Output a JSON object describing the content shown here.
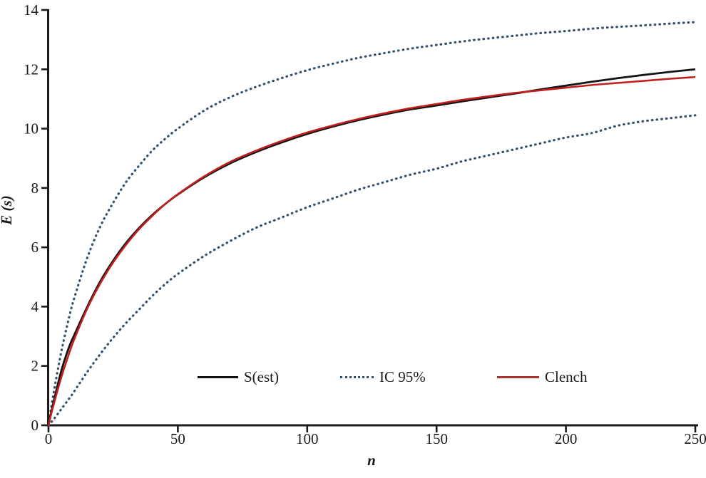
{
  "figure": {
    "background": "#ffffff",
    "axis_color": "#1a1a1a",
    "tick_color": "#1a1a1a"
  },
  "chart_data": {
    "type": "line",
    "title": "",
    "xlabel": "n",
    "ylabel": "E (s)",
    "xlim": [
      0,
      250
    ],
    "ylim": [
      0,
      14
    ],
    "x_ticks": [
      0,
      50,
      100,
      150,
      200,
      250
    ],
    "y_ticks": [
      0,
      2,
      4,
      6,
      8,
      10,
      12,
      14
    ],
    "grid": false,
    "legend_position": "inside-bottom-center",
    "x_shared": [
      0,
      2,
      5,
      8,
      10,
      15,
      20,
      25,
      30,
      35,
      40,
      45,
      50,
      60,
      70,
      80,
      90,
      100,
      110,
      120,
      130,
      140,
      150,
      160,
      170,
      180,
      190,
      200,
      210,
      220,
      230,
      240,
      250
    ],
    "series": [
      {
        "name": "S(est)",
        "style": "solid",
        "color": "#141414",
        "width": 2.8,
        "y": [
          0,
          0.8,
          1.85,
          2.65,
          3.05,
          4.0,
          4.85,
          5.55,
          6.15,
          6.65,
          7.08,
          7.45,
          7.78,
          8.35,
          8.82,
          9.2,
          9.53,
          9.82,
          10.07,
          10.29,
          10.48,
          10.65,
          10.78,
          10.92,
          11.05,
          11.18,
          11.32,
          11.45,
          11.58,
          11.7,
          11.81,
          11.91,
          12.0
        ]
      },
      {
        "name": "IC 95%",
        "style": "dotted",
        "color": "#35506e",
        "width": 3.2,
        "upper_y": [
          0,
          1.1,
          2.5,
          3.65,
          4.3,
          5.65,
          6.7,
          7.5,
          8.2,
          8.75,
          9.25,
          9.65,
          10.0,
          10.6,
          11.05,
          11.4,
          11.7,
          11.97,
          12.19,
          12.39,
          12.55,
          12.7,
          12.82,
          12.94,
          13.04,
          13.13,
          13.22,
          13.29,
          13.37,
          13.43,
          13.48,
          13.54,
          13.59
        ],
        "lower_y": [
          0,
          0.2,
          0.55,
          0.9,
          1.15,
          1.8,
          2.4,
          2.95,
          3.45,
          3.9,
          4.35,
          4.75,
          5.1,
          5.7,
          6.2,
          6.65,
          7.0,
          7.35,
          7.65,
          7.95,
          8.2,
          8.45,
          8.65,
          8.9,
          9.1,
          9.3,
          9.5,
          9.7,
          9.85,
          10.1,
          10.25,
          10.35,
          10.45
        ]
      },
      {
        "name": "Clench",
        "style": "solid",
        "color": "#c1201e",
        "width": 2.6,
        "y": [
          0,
          0.7,
          1.63,
          2.43,
          2.91,
          3.94,
          4.78,
          5.49,
          6.09,
          6.61,
          7.05,
          7.45,
          7.79,
          8.38,
          8.87,
          9.25,
          9.58,
          9.87,
          10.11,
          10.33,
          10.52,
          10.69,
          10.83,
          10.97,
          11.09,
          11.2,
          11.29,
          11.38,
          11.47,
          11.54,
          11.61,
          11.68,
          11.74
        ]
      }
    ]
  }
}
